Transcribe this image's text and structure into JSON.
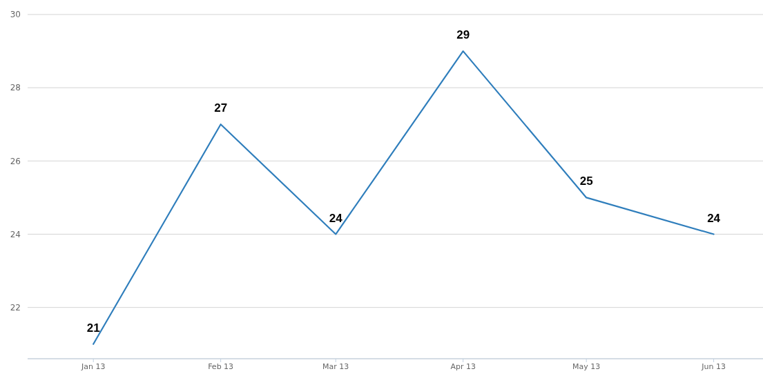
{
  "chart_data": {
    "type": "line",
    "x": [
      "2013-01",
      "2013-02",
      "2013-03",
      "2013-04",
      "2013-05",
      "2013-06"
    ],
    "series": [
      {
        "color": "#2f7ebc",
        "values": [
          21,
          27,
          24,
          29,
          25,
          24
        ]
      }
    ],
    "xlim": [
      "2012-12-16",
      "2013-06-13"
    ],
    "xticks": [
      {
        "value": "2013-01",
        "label": "Jan 13"
      },
      {
        "value": "2013-02",
        "label": "Feb 13"
      },
      {
        "value": "2013-03",
        "label": "Mar 13"
      },
      {
        "value": "2013-04",
        "label": "Apr 13"
      },
      {
        "value": "2013-05",
        "label": "May 13"
      },
      {
        "value": "2013-06",
        "label": "Jun 13"
      }
    ],
    "ylim": [
      20.6,
      30
    ],
    "yticks": [
      22,
      24,
      26,
      28,
      30
    ],
    "grid": "y",
    "data_labels": true,
    "marker": "none",
    "line_style": "solid"
  }
}
